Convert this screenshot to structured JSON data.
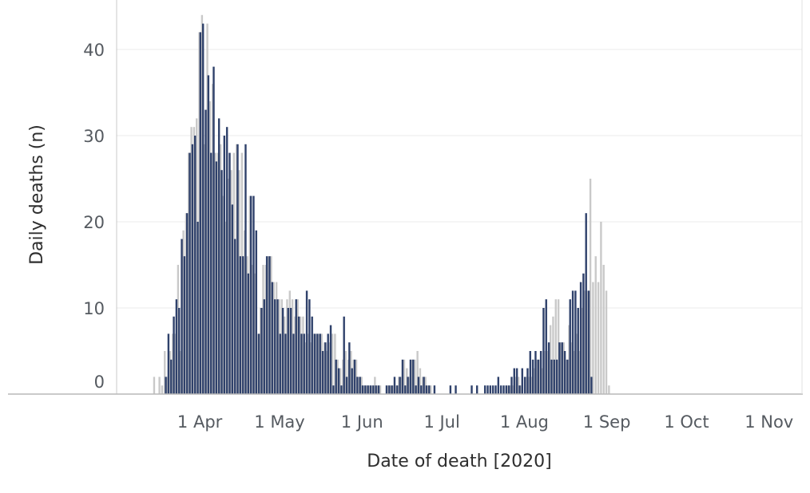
{
  "chart_data": {
    "type": "bar",
    "xlabel": "Date of death [2020]",
    "ylabel": "Daily deaths (n)",
    "ylim": [
      0,
      45
    ],
    "x_start": "2020-03-15",
    "x_end": "2020-11-07",
    "y_ticks": [
      0,
      10,
      20,
      30,
      40
    ],
    "x_ticks": [
      {
        "date": "2020-04-01",
        "label": "1 Apr"
      },
      {
        "date": "2020-05-01",
        "label": "1 May"
      },
      {
        "date": "2020-06-01",
        "label": "1 Jun"
      },
      {
        "date": "2020-07-01",
        "label": "1 Jul"
      },
      {
        "date": "2020-08-01",
        "label": "1 Aug"
      },
      {
        "date": "2020-09-01",
        "label": "1 Sep"
      },
      {
        "date": "2020-10-01",
        "label": "1 Oct"
      },
      {
        "date": "2020-11-01",
        "label": "1 Nov"
      }
    ],
    "grid": true,
    "series": [
      {
        "color": "#c9c9c9",
        "values": [
          2,
          0,
          2,
          1,
          5,
          2,
          5,
          7,
          7,
          15,
          5,
          19,
          21,
          28,
          31,
          31,
          32,
          42,
          44,
          29,
          43,
          34,
          36,
          28,
          28,
          29,
          23,
          20,
          25,
          26,
          28,
          29,
          26,
          28,
          19,
          16,
          23,
          15,
          14,
          7,
          10,
          15,
          15,
          16,
          16,
          13,
          13,
          11,
          11,
          9,
          11,
          12,
          11,
          9,
          11,
          9,
          9,
          6,
          7,
          6,
          7,
          7,
          7,
          7,
          6,
          5,
          6,
          7,
          7,
          4,
          3,
          4,
          5,
          4,
          5,
          4,
          4,
          2,
          2,
          1,
          1,
          1,
          1,
          2,
          1,
          1,
          0,
          0,
          1,
          1,
          1,
          1,
          2,
          2,
          4,
          3,
          2,
          4,
          4,
          5,
          3,
          2,
          2,
          1,
          1,
          0,
          0,
          0,
          0,
          0,
          0,
          0,
          0,
          0,
          0,
          0,
          0,
          0,
          0,
          0,
          0,
          0,
          0,
          0,
          0,
          0,
          0,
          0,
          0,
          0,
          0,
          0,
          0,
          1,
          1,
          1,
          2,
          2,
          1,
          0,
          2,
          2,
          2,
          3,
          4,
          4,
          3,
          5,
          5,
          8,
          9,
          11,
          11,
          6,
          6,
          4,
          8,
          6,
          5,
          7,
          5,
          10,
          12,
          12,
          25,
          13,
          16,
          13,
          20,
          15,
          12,
          1
        ],
        "missing_value_placeholder": null
      },
      {
        "color": "#2f416b",
        "values": [
          0,
          0,
          0,
          0,
          2,
          7,
          4,
          9,
          11,
          10,
          18,
          16,
          21,
          28,
          29,
          30,
          20,
          42,
          43,
          33,
          37,
          28,
          38,
          27,
          32,
          26,
          30,
          31,
          28,
          22,
          18,
          29,
          16,
          16,
          29,
          14,
          23,
          23,
          19,
          7,
          10,
          11,
          16,
          16,
          13,
          11,
          11,
          7,
          10,
          7,
          10,
          10,
          7,
          11,
          9,
          7,
          7,
          12,
          11,
          9,
          7,
          7,
          7,
          5,
          6,
          7,
          8,
          1,
          4,
          3,
          1,
          9,
          2,
          6,
          3,
          4,
          2,
          2,
          1,
          1,
          1,
          1,
          1,
          1,
          1,
          0,
          0,
          1,
          1,
          1,
          2,
          1,
          2,
          4,
          1,
          2,
          4,
          4,
          1,
          2,
          1,
          2,
          1,
          1,
          0,
          1,
          0,
          0,
          0,
          0,
          0,
          1,
          0,
          1,
          0,
          0,
          0,
          0,
          0,
          1,
          0,
          1,
          0,
          0,
          1,
          1,
          1,
          1,
          1,
          2,
          1,
          1,
          1,
          1,
          2,
          3,
          3,
          1,
          3,
          2,
          3,
          5,
          4,
          5,
          4,
          5,
          10,
          11,
          6,
          4,
          4,
          4,
          6,
          6,
          5,
          4,
          11,
          12,
          12,
          10,
          13,
          14,
          21,
          12,
          2,
          0,
          0,
          0,
          0,
          0,
          0,
          0
        ],
        "missing_value_placeholder": null
      }
    ]
  }
}
